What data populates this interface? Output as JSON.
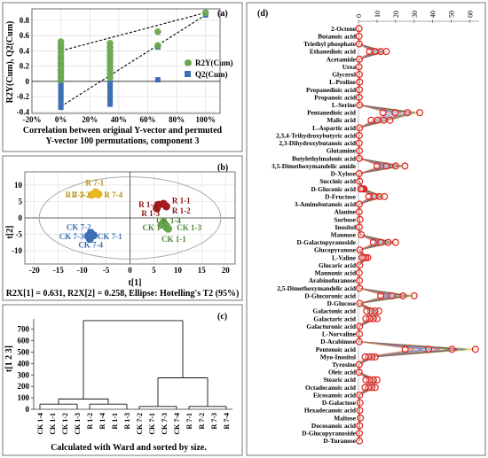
{
  "panels": {
    "a": {
      "letter": "(a)"
    },
    "b": {
      "letter": "(b)"
    },
    "c": {
      "letter": "(c)"
    },
    "d": {
      "letter": "(d)"
    }
  },
  "chart_data": [
    {
      "type": "scatter",
      "panel": "a",
      "xlabel": "Correlation between original Y-vector and permuted Y-vector 100 permutations, component 3",
      "ylabel": "R2Y(Cum), Q2(Cum)",
      "x_ticks": [
        "-20%",
        "0%",
        "20%",
        "40%",
        "60%",
        "80%",
        "100%"
      ],
      "y_ticks": [
        "-0.4",
        "-0.2",
        "0",
        "0.2",
        "0.4",
        "0.6",
        "0.8"
      ],
      "xlim": [
        -20,
        110
      ],
      "ylim": [
        -0.42,
        0.95
      ],
      "legend_position": "right",
      "series": [
        {
          "name": "R2Y(Cum)",
          "color": "#6aa84f",
          "shape": "circle",
          "points": [
            [
              0,
              0.52
            ],
            [
              0,
              0.47
            ],
            [
              0,
              0.43
            ],
            [
              0,
              0.38
            ],
            [
              0,
              0.33
            ],
            [
              0,
              0.29
            ],
            [
              0,
              0.24
            ],
            [
              0,
              0.2
            ],
            [
              0,
              0.15
            ],
            [
              0,
              0.11
            ],
            [
              0,
              0.06
            ],
            [
              0,
              0.02
            ],
            [
              34,
              0.5
            ],
            [
              34,
              0.45
            ],
            [
              34,
              0.4
            ],
            [
              34,
              0.35
            ],
            [
              34,
              0.3
            ],
            [
              34,
              0.25
            ],
            [
              34,
              0.2
            ],
            [
              34,
              0.15
            ],
            [
              34,
              0.1
            ],
            [
              34,
              0.05
            ],
            [
              67,
              0.65
            ],
            [
              67,
              0.47
            ],
            [
              100,
              0.9
            ]
          ]
        },
        {
          "name": "Q2(Cum)",
          "color": "#3d6fb5",
          "shape": "square",
          "points": [
            [
              0,
              -0.02
            ],
            [
              0,
              -0.06
            ],
            [
              0,
              -0.1
            ],
            [
              0,
              -0.14
            ],
            [
              0,
              -0.18
            ],
            [
              0,
              -0.22
            ],
            [
              0,
              -0.26
            ],
            [
              0,
              -0.3
            ],
            [
              0,
              -0.34
            ],
            [
              34,
              -0.02
            ],
            [
              34,
              -0.06
            ],
            [
              34,
              -0.1
            ],
            [
              34,
              -0.14
            ],
            [
              34,
              -0.18
            ],
            [
              34,
              -0.22
            ],
            [
              34,
              -0.26
            ],
            [
              34,
              -0.3
            ],
            [
              67,
              0.45
            ],
            [
              67,
              0.02
            ],
            [
              100,
              0.87
            ]
          ]
        }
      ],
      "regression_lines": [
        [
          [
            0,
            0.4
          ],
          [
            100,
            0.9
          ]
        ],
        [
          [
            0,
            -0.33
          ],
          [
            100,
            0.87
          ]
        ]
      ]
    },
    {
      "type": "scatter",
      "panel": "b",
      "xlabel": "t[1]",
      "ylabel": "t[2]",
      "x_ticks": [
        "-20",
        "-15",
        "-10",
        "-5",
        "0",
        "5",
        "10",
        "15",
        "20"
      ],
      "y_ticks": [
        "-10",
        "-5",
        "0",
        "5",
        "10"
      ],
      "xlim": [
        -22,
        22
      ],
      "ylim": [
        -14,
        14
      ],
      "footer": "R2X[1] = 0.631, R2X[2] = 0.258, Ellipse: Hotelling's T2 (95%)",
      "groups": [
        {
          "color": "#e8b820",
          "label_color": "#b8900a",
          "points": [
            {
              "x": -7.2,
              "y": 7.8,
              "label": "R 7-1",
              "lx": -9.3,
              "ly": 10.6
            },
            {
              "x": -8.0,
              "y": 7.0,
              "label": "R 7-3",
              "lx": -13.5,
              "ly": 7.0
            },
            {
              "x": -6.6,
              "y": 7.2,
              "label": "R 7-2",
              "lx": -12.2,
              "ly": 7.0
            },
            {
              "x": -7.4,
              "y": 7.4,
              "label": "R 7-4",
              "lx": -5.4,
              "ly": 7.0
            }
          ]
        },
        {
          "color": "#3d6fb5",
          "label_color": "#3d6fb5",
          "points": [
            {
              "x": -8.2,
              "y": -4.5,
              "label": "CK 7-2",
              "lx": -13.3,
              "ly": -2.8
            },
            {
              "x": -8.8,
              "y": -5.5,
              "label": "CK 7-3",
              "lx": -14.8,
              "ly": -5.6
            },
            {
              "x": -7.6,
              "y": -5.3,
              "label": "CK 7-1",
              "lx": -6.8,
              "ly": -5.6
            },
            {
              "x": -8.4,
              "y": -6.4,
              "label": "CK 7-4",
              "lx": -10.8,
              "ly": -8.2
            }
          ]
        },
        {
          "color": "#a31d1d",
          "label_color": "#8b1010",
          "points": [
            {
              "x": 6.0,
              "y": 4.0,
              "label": "R 1-4",
              "lx": 1.8,
              "ly": 4.0
            },
            {
              "x": 7.0,
              "y": 4.3,
              "label": "R 1-1",
              "lx": 8.8,
              "ly": 5.3
            },
            {
              "x": 7.6,
              "y": 3.5,
              "label": "R 1-2",
              "lx": 8.8,
              "ly": 2.2
            },
            {
              "x": 5.6,
              "y": 2.9,
              "label": "R 1-3",
              "lx": 2.4,
              "ly": 1.3
            }
          ]
        },
        {
          "color": "#6aa84f",
          "label_color": "#4e8a38",
          "points": [
            {
              "x": 7.0,
              "y": -1.3,
              "label": "CK 1-2",
              "lx": 2.6,
              "ly": -3.0
            },
            {
              "x": 7.6,
              "y": -2.4,
              "label": "CK 1-3",
              "lx": 9.8,
              "ly": -3.0
            },
            {
              "x": 6.6,
              "y": -2.1,
              "label": "CK 1-4",
              "lx": 5.5,
              "ly": -0.8
            },
            {
              "x": 8.0,
              "y": -3.3,
              "label": "CK 1-1",
              "lx": 6.6,
              "ly": -6.4
            }
          ]
        }
      ]
    },
    {
      "type": "dendrogram",
      "panel": "c",
      "ylabel": "t[1 2 3]",
      "y_ticks": [
        "0",
        "100",
        "200",
        "300",
        "400",
        "500",
        "600",
        "700"
      ],
      "ylim": [
        0,
        790
      ],
      "footer": "Calculated with Ward and sorted by size.",
      "leaves": [
        "CK 1-4",
        "CK 1-1",
        "CK 1-2",
        "CK 1-3",
        "R 1-2",
        "R 1-4",
        "R 1-1",
        "R 1-3",
        "CK 7-2",
        "CK 7-1",
        "CK 7-3",
        "CK 7-4",
        "R 7-1",
        "R 7-2",
        "R 7-3",
        "R 7-4"
      ],
      "merges": [
        {
          "l": 0,
          "r": 3,
          "h": 45
        },
        {
          "l": 4,
          "r": 7,
          "h": 45
        },
        {
          "l": 1.5,
          "r": 5.5,
          "h": 90
        },
        {
          "l": 8,
          "r": 11,
          "h": 25
        },
        {
          "l": 12,
          "r": 15,
          "h": 25
        },
        {
          "l": 9.5,
          "r": 13.5,
          "h": 275
        },
        {
          "l": 3.5,
          "r": 11.5,
          "h": 775
        }
      ]
    },
    {
      "type": "line",
      "panel": "d",
      "x_ticks": [
        "0",
        "10",
        "20",
        "30",
        "40",
        "50",
        "60"
      ],
      "xlim": [
        0,
        65
      ],
      "categories": [
        "2-Octene",
        "Butanoic acid",
        "Triethyl phosphate",
        "Ethanedioic acid",
        "Acetamide",
        "Urea",
        "Glycerol",
        "L-Proline",
        "Propanedioic acid",
        "Propanoic acid",
        "L-Serine",
        "Pentanedioic acid",
        "Malic acid",
        "L-Aspartic acid",
        "2,3,4-Trihydroxybutyric acid",
        "2,3-Dihydroxybutanoic acid",
        "Glutamine",
        "Butylethylmalonic acid",
        "3,5-Dimethoxymandelic amide",
        "D-Xylose",
        "Succinic acid",
        "D-Gluconic acid",
        "D-Fructose",
        "3-Aminobutanoic acid",
        "Alanine",
        "Sorbose",
        "Inositol",
        "Mannose",
        "D-Galactopyranoside",
        "Glucopyranose",
        "L-Valine",
        "Glucaric acid",
        "Mannonic acid",
        "Arabinofuranose",
        "2,5-Dimethoxymandelic acid",
        "D-Glucuronic acid",
        "D-Glucose",
        "Galactonic acid",
        "Galactaric acid",
        "Galacturonic acid",
        "L-Norvaline",
        "D-Arabinose",
        "Pentenoic acid",
        "Myo-Inositol",
        "Tyrosine",
        "Oleic acid",
        "Stearic acid",
        "Octadecanoic acid",
        "Eicosanoic acid",
        "D-Galactose",
        "Hexadecanoic acid",
        "Maltose",
        "Docosanoic acid",
        "D-Glucopyranoside",
        "D-Turanose"
      ],
      "max_values": [
        0.3,
        0.3,
        0.4,
        15,
        0.5,
        0.3,
        0.5,
        0.6,
        0.5,
        0.4,
        0.6,
        33,
        17,
        0.6,
        0.4,
        0.4,
        0.5,
        0.5,
        25,
        0.4,
        0.6,
        3,
        14,
        0.5,
        0.4,
        0.8,
        0.4,
        1.5,
        20,
        0.7,
        5,
        0.6,
        0.4,
        0.5,
        0.5,
        30,
        0.7,
        11,
        10,
        0.6,
        0.5,
        0.4,
        63,
        9,
        0.4,
        0.4,
        10,
        9,
        0.6,
        0.8,
        0.7,
        1,
        0.6,
        0.5,
        0.5
      ],
      "series_colors": [
        "#e8b820",
        "#3d6fb5",
        "#a31d1d",
        "#6aa84f",
        "#d94fa0",
        "#20a0a0",
        "#9b59b6",
        "#e67e22"
      ]
    }
  ]
}
